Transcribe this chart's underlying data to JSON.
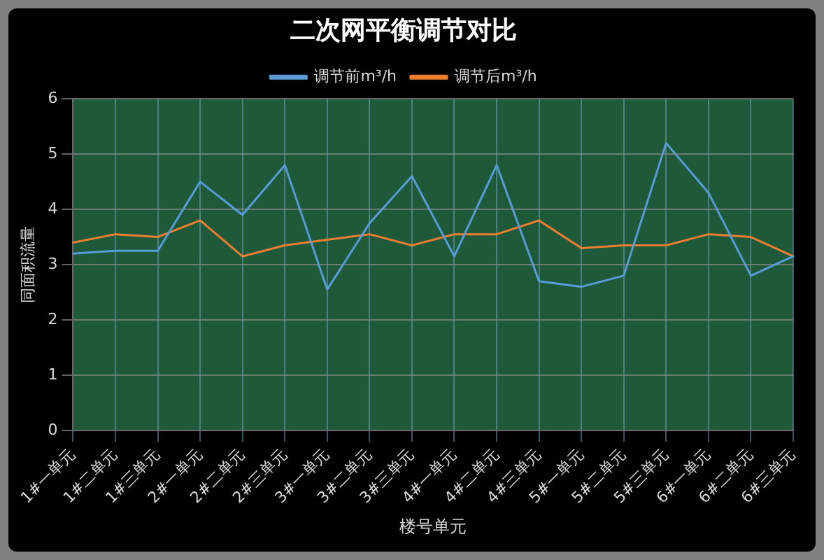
{
  "chart_data": {
    "type": "line",
    "title": "二次网平衡调节对比",
    "xlabel": "楼号单元",
    "ylabel": "同面积流量",
    "categories": [
      "1#一单元",
      "1#二单元",
      "1#三单元",
      "2#一单元",
      "2#二单元",
      "2#三单元",
      "3#一单元",
      "3#二单元",
      "3#三单元",
      "4#一单元",
      "4#二单元",
      "4#三单元",
      "5#一单元",
      "5#二单元",
      "5#三单元",
      "6#一单元",
      "6#二单元",
      "6#三单元"
    ],
    "series": [
      {
        "name": "调节前m³/h",
        "color": "#5b9bd5",
        "values": [
          3.2,
          3.25,
          3.25,
          4.5,
          3.9,
          4.8,
          2.55,
          3.75,
          4.6,
          3.15,
          4.8,
          2.7,
          2.6,
          2.8,
          5.2,
          4.3,
          2.8,
          3.15
        ]
      },
      {
        "name": "调节后m³/h",
        "color": "#ed7d31",
        "values": [
          3.4,
          3.55,
          3.5,
          3.8,
          3.15,
          3.35,
          3.45,
          3.55,
          3.35,
          3.55,
          3.55,
          3.8,
          3.3,
          3.35,
          3.35,
          3.55,
          3.5,
          3.15
        ]
      }
    ],
    "ylim": [
      0,
      6
    ],
    "yticks": [
      0,
      1,
      2,
      3,
      4,
      5,
      6
    ],
    "grid": true,
    "legend": "top",
    "marker": "none",
    "line_style": "solid"
  }
}
